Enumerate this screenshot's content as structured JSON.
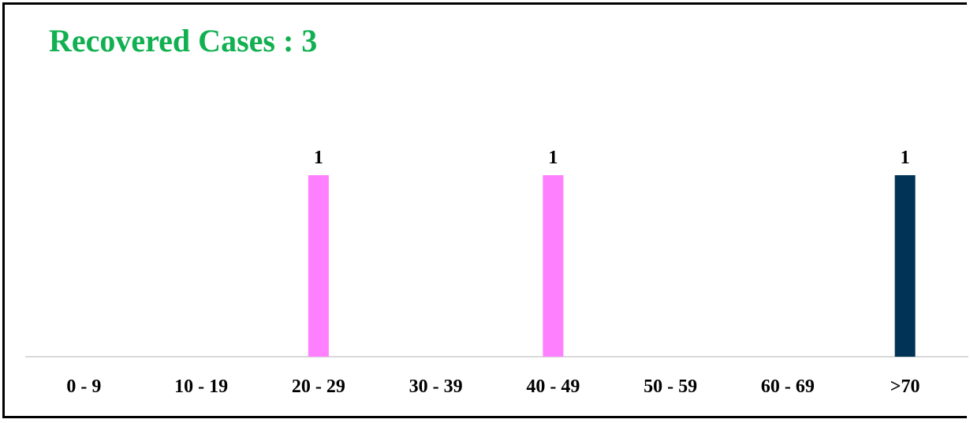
{
  "chart_data": {
    "type": "bar",
    "title": "Recovered Cases : 3",
    "categories": [
      "0 - 9",
      "10 - 19",
      "20 - 29",
      "30 - 39",
      "40 - 49",
      "50 - 59",
      "60 - 69",
      ">70"
    ],
    "values": [
      0,
      0,
      1,
      0,
      1,
      0,
      0,
      1
    ],
    "data_labels": [
      "",
      "",
      "1",
      "",
      "1",
      "",
      "",
      "1"
    ],
    "bar_colors": [
      "#FF80FF",
      "#FF80FF",
      "#FF80FF",
      "#FF80FF",
      "#FF80FF",
      "#FF80FF",
      "#FF80FF",
      "#003355"
    ],
    "xlabel": "",
    "ylabel": "",
    "ylim": [
      0,
      1
    ],
    "grid": false,
    "legend": "none"
  },
  "colors": {
    "title": "#11B050",
    "axis": "#D9D9D9"
  }
}
